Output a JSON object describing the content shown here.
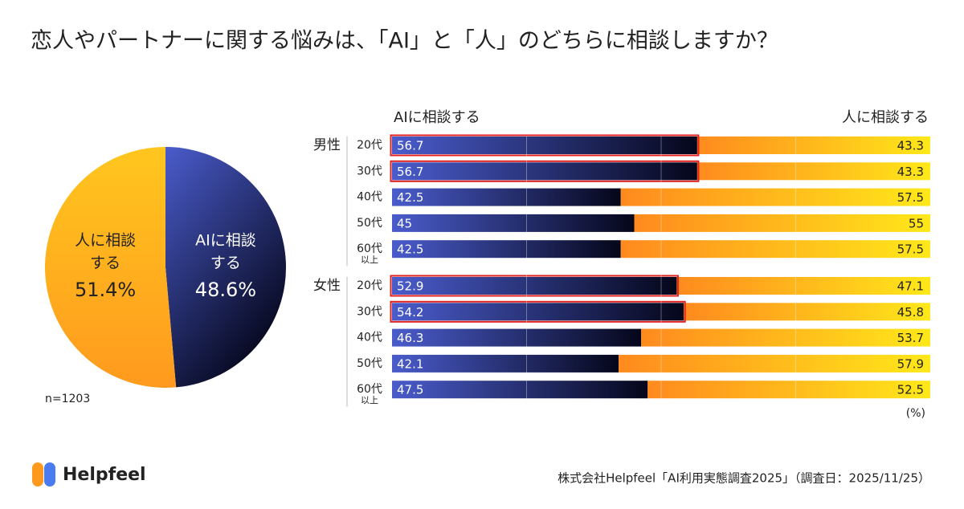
{
  "title": "恋人やパートナーに関する悩みは、「AI」と「人」のどちらに相談しますか？",
  "chart_data": [
    {
      "type": "pie",
      "labels": [
        [
          "AIに相談",
          "する"
        ],
        [
          "人に相談",
          "する"
        ]
      ],
      "values": [
        48.6,
        51.4
      ],
      "value_labels": [
        "48.6%",
        "51.4%"
      ],
      "colors": [
        [
          "#4a5ccc",
          "#05061a"
        ],
        [
          "#ff9a1e",
          "#ffc61e"
        ]
      ],
      "note": "n=1203"
    },
    {
      "type": "stacked_bar",
      "legend": [
        "AIに相談する",
        "人に相談する"
      ],
      "colors": [
        [
          "#4a5ccc",
          "#05061a"
        ],
        [
          "#ff8a1e",
          "#ffe81a"
        ]
      ],
      "xlim": [
        0,
        100
      ],
      "grid_lines": [
        25,
        50,
        75
      ],
      "unit": "(%)",
      "last_category_note": "以上",
      "highlight_color": "#e0201e",
      "groups": [
        {
          "name": "男性",
          "categories": [
            "20代",
            "30代",
            "40代",
            "50代",
            "60代"
          ],
          "highlight": [
            0,
            1
          ],
          "series": [
            [
              56.7,
              56.7,
              42.5,
              45,
              42.5
            ],
            [
              43.3,
              43.3,
              57.5,
              55,
              57.5
            ]
          ]
        },
        {
          "name": "女性",
          "categories": [
            "20代",
            "30代",
            "40代",
            "50代",
            "60代"
          ],
          "highlight": [
            0,
            1
          ],
          "series": [
            [
              52.9,
              54.2,
              46.3,
              42.1,
              47.5
            ],
            [
              47.1,
              45.8,
              53.7,
              57.9,
              52.5
            ]
          ]
        }
      ]
    }
  ],
  "brand": "Helpfeel",
  "source": "株式会社Helpfeel「AI利用実態調査2025」（調査日：2025/11/25）"
}
